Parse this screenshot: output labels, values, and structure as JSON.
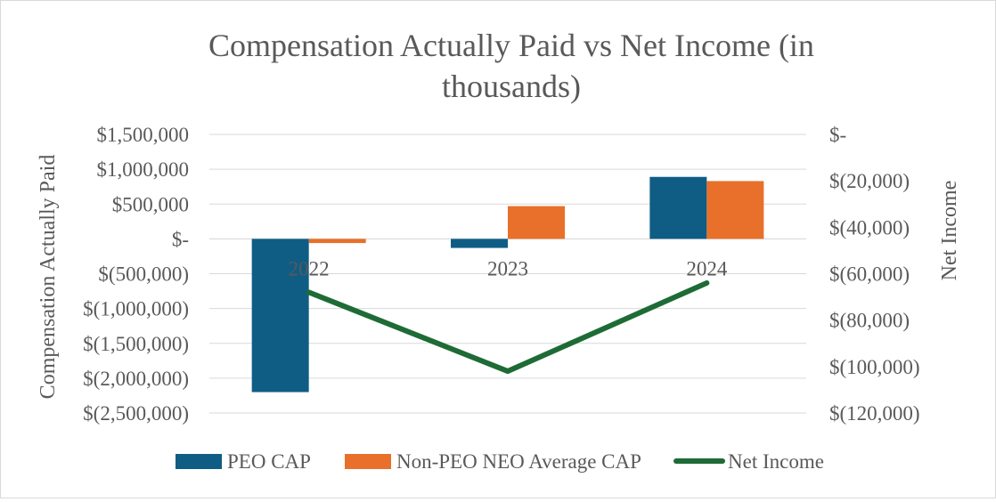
{
  "chart_data": {
    "type": "bar",
    "title": "Compensation Actually Paid vs Net Income (in thousands)",
    "title_lines": [
      "Compensation Actually Paid vs Net Income (in",
      "thousands)"
    ],
    "categories": [
      "2022",
      "2023",
      "2024"
    ],
    "ylabel": "Compensation Actually Paid",
    "y2label": "Net Income",
    "ylim": [
      -2500000,
      1500000
    ],
    "y2lim": [
      -120000,
      0
    ],
    "y_ticks": [
      1500000,
      1000000,
      500000,
      0,
      -500000,
      -1000000,
      -1500000,
      -2000000,
      -2500000
    ],
    "y_tick_labels": [
      "$1,500,000",
      "$1,000,000",
      "$500,000",
      "$-",
      "$(500,000)",
      "$(1,000,000)",
      "$(1,500,000)",
      "$(2,000,000)",
      "$(2,500,000)"
    ],
    "y2_ticks": [
      0,
      -20000,
      -40000,
      -60000,
      -80000,
      -100000,
      -120000
    ],
    "y2_tick_labels": [
      "$-",
      "$(20,000)",
      "$(40,000)",
      "$(60,000)",
      "$(80,000)",
      "$(100,000)",
      "$(120,000)"
    ],
    "grid": true,
    "legend_position": "bottom",
    "series": [
      {
        "name": "PEO CAP",
        "type": "bar",
        "axis": "left",
        "color": "#0f5d84",
        "values": [
          -2200000,
          -130000,
          890000
        ]
      },
      {
        "name": "Non-PEO NEO Average CAP",
        "type": "bar",
        "axis": "left",
        "color": "#e8702a",
        "values": [
          -60000,
          470000,
          830000
        ]
      },
      {
        "name": "Net Income",
        "type": "line",
        "axis": "right",
        "color": "#1e6b36",
        "values": [
          -68000,
          -102000,
          -64000
        ]
      }
    ]
  }
}
